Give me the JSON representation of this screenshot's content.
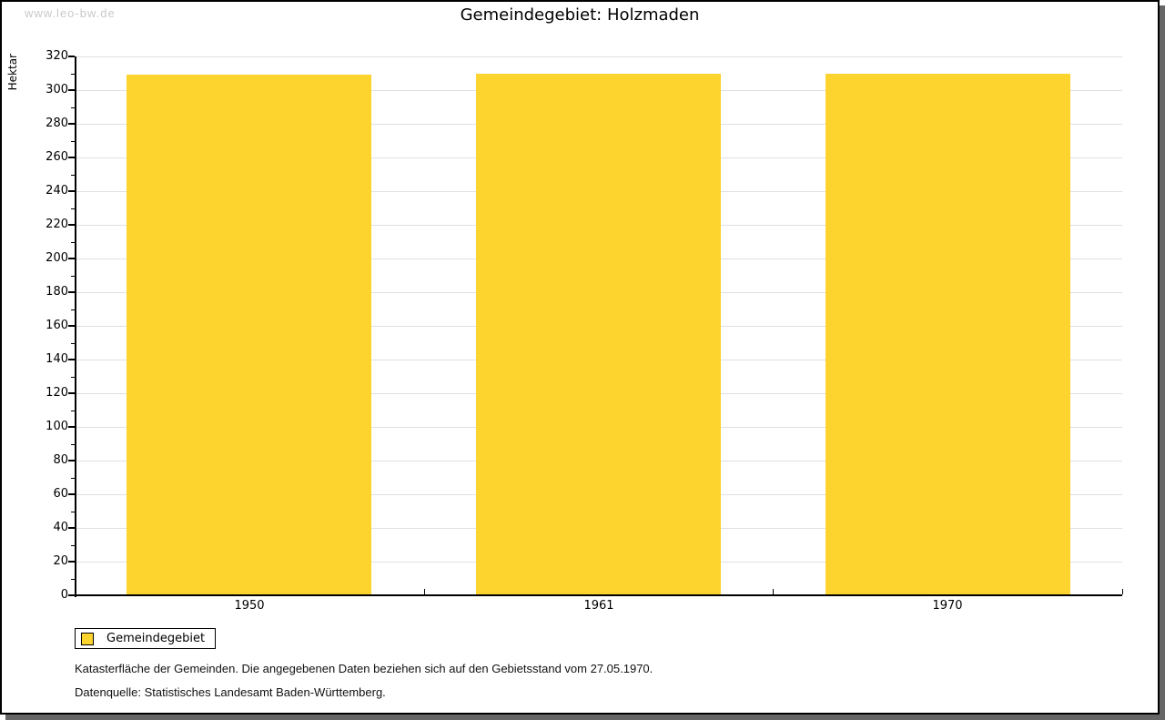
{
  "watermark": "www.leo-bw.de",
  "chart_data": {
    "type": "bar",
    "title": "Gemeindegebiet: Holzmaden",
    "ylabel": "Hektar",
    "xlabel": "",
    "categories": [
      "1950",
      "1961",
      "1970"
    ],
    "series": [
      {
        "name": "Gemeindegebiet",
        "values": [
          309,
          310,
          310
        ]
      }
    ],
    "ylim": [
      0,
      320
    ],
    "ytick_step": 20,
    "yminor_step": 10,
    "grid": true,
    "legend_position": "bottom-left",
    "colors": {
      "bar": "#fdd32e",
      "grid": "#e0e0e0",
      "axis": "#000000"
    }
  },
  "legend": {
    "label": "Gemeindegebiet"
  },
  "footer": {
    "note": "Katasterfläche der Gemeinden. Die angegebenen Daten beziehen sich auf den Gebietsstand vom 27.05.1970.",
    "source": "Datenquelle: Statistisches Landesamt Baden-Württemberg."
  }
}
